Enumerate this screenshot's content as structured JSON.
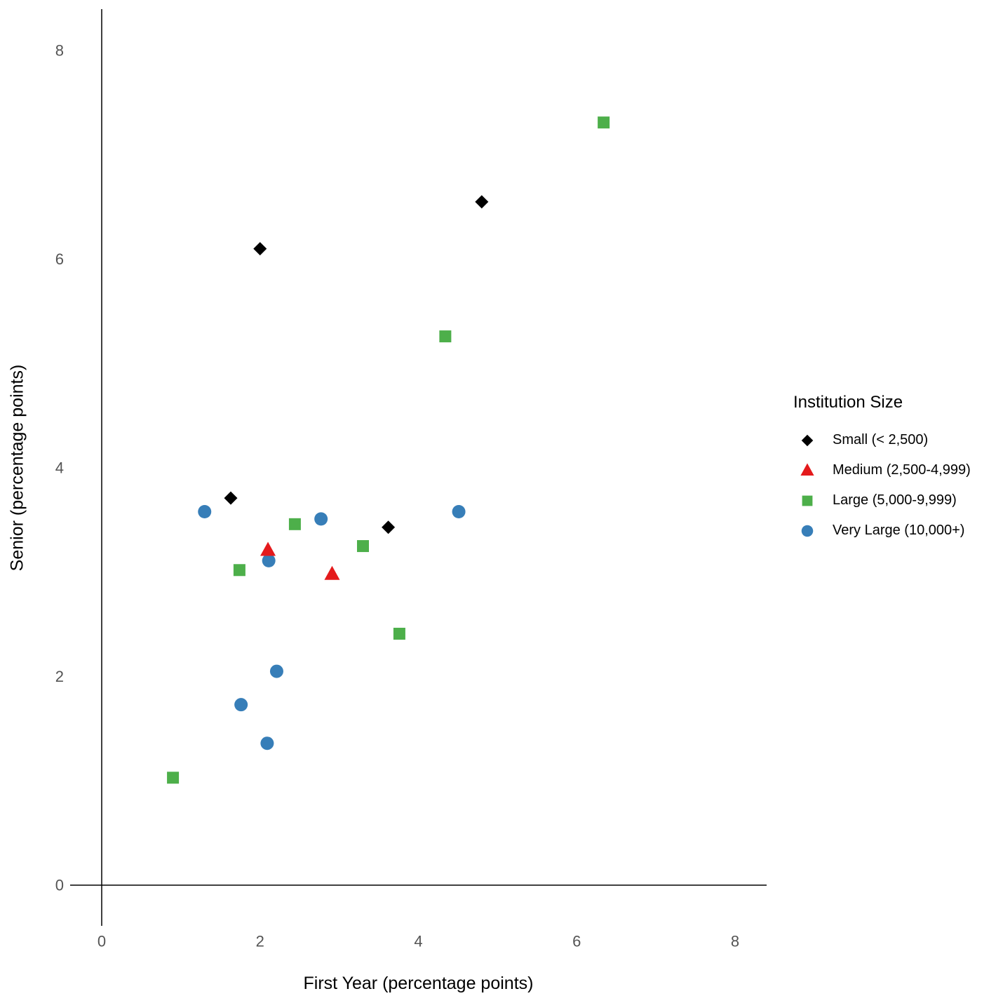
{
  "chart_data": {
    "type": "scatter",
    "title": "",
    "xlabel": "First Year (percentage points)",
    "ylabel": "Senior (percentage points)",
    "xlim": [
      0,
      8
    ],
    "ylim": [
      0,
      8
    ],
    "x_ticks": [
      0,
      2,
      4,
      6,
      8
    ],
    "y_ticks": [
      0,
      2,
      4,
      6,
      8
    ],
    "grid": false,
    "legend_title": "Institution Size",
    "legend_position": "right",
    "axis_color": "#000000",
    "tick_label_color": "#545454",
    "series": [
      {
        "name": "Small (< 2,500)",
        "marker": "diamond",
        "color": "#000000",
        "points": [
          [
            2.0,
            6.1
          ],
          [
            4.8,
            6.55
          ],
          [
            1.63,
            3.71
          ],
          [
            3.62,
            3.43
          ]
        ]
      },
      {
        "name": "Medium (2,500-4,999)",
        "marker": "triangle",
        "color": "#E41A1C",
        "points": [
          [
            2.1,
            3.21
          ],
          [
            2.91,
            2.98
          ]
        ]
      },
      {
        "name": "Large (5,000-9,999)",
        "marker": "square",
        "color": "#4DAF4A",
        "points": [
          [
            6.34,
            7.31
          ],
          [
            4.34,
            5.26
          ],
          [
            2.44,
            3.46
          ],
          [
            3.3,
            3.25
          ],
          [
            1.74,
            3.02
          ],
          [
            3.76,
            2.41
          ],
          [
            0.9,
            1.03
          ]
        ]
      },
      {
        "name": "Very Large (10,000+)",
        "marker": "circle",
        "color": "#377EB8",
        "points": [
          [
            1.3,
            3.58
          ],
          [
            2.77,
            3.51
          ],
          [
            4.51,
            3.58
          ],
          [
            2.11,
            3.11
          ],
          [
            2.21,
            2.05
          ],
          [
            1.76,
            1.73
          ],
          [
            2.09,
            1.36
          ]
        ]
      }
    ]
  }
}
